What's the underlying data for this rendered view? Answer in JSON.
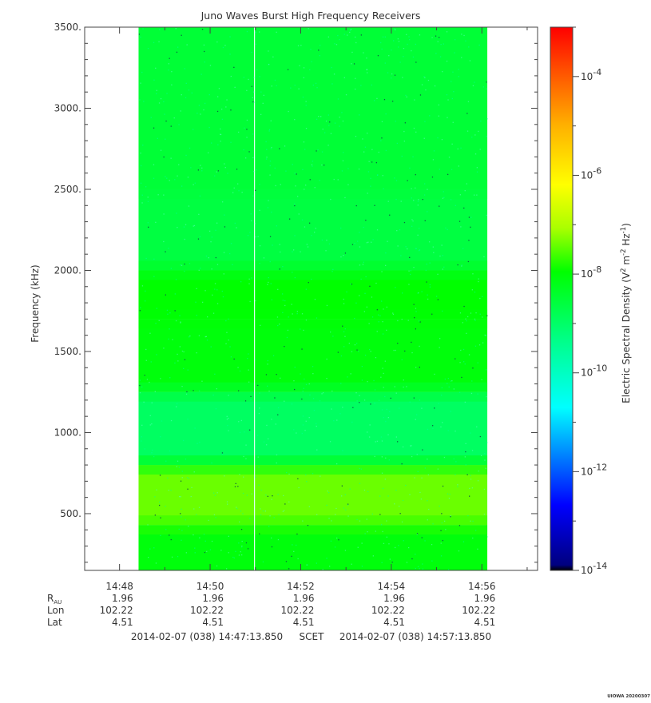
{
  "chart_data": {
    "type": "heatmap",
    "title": "Juno Waves Burst High Frequency Receivers",
    "ylabel": "Frequency (kHz)",
    "y_ticks": [
      "500.",
      "1000.",
      "1500.",
      "2000.",
      "2500.",
      "3000.",
      "3500."
    ],
    "y_tick_values": [
      500,
      1000,
      1500,
      2000,
      2500,
      3000,
      3500
    ],
    "ylim": [
      150,
      3500
    ],
    "x_ticks": [
      "14:48",
      "14:50",
      "14:52",
      "14:54",
      "14:56"
    ],
    "x_tick_minutes": [
      48,
      50,
      52,
      54,
      56
    ],
    "xlim_minutes": [
      47.23,
      57.23
    ],
    "data_extent_minutes": [
      48.42,
      56.12
    ],
    "gap_line_minute": 50.98,
    "colorbar": {
      "label": "Electric Spectral Density (V",
      "label_sup1": "2",
      "label_mid": " m",
      "label_sup2": "-2",
      "label_mid2": " Hz",
      "label_sup3": "-1",
      "label_end": ")",
      "tick_base": "10",
      "tick_exponents": [
        "-4",
        "-6",
        "-8",
        "-10",
        "-12",
        "-14"
      ],
      "tick_values_log": [
        -4,
        -6,
        -8,
        -10,
        -12,
        -14
      ],
      "range_log": [
        -14,
        -3
      ]
    },
    "frequency_bands": [
      {
        "from": 150,
        "to": 430,
        "intensity": 0.54
      },
      {
        "from": 430,
        "to": 800,
        "intensity": 0.6
      },
      {
        "from": 800,
        "to": 1250,
        "intensity": 0.46
      },
      {
        "from": 1250,
        "to": 1700,
        "intensity": 0.54
      },
      {
        "from": 1700,
        "to": 2000,
        "intensity": 0.55
      },
      {
        "from": 2000,
        "to": 2500,
        "intensity": 0.49
      },
      {
        "from": 2500,
        "to": 3500,
        "intensity": 0.5
      }
    ],
    "ephemeris": {
      "rows": [
        {
          "label": "R",
          "label_sub": "AU",
          "values": [
            "1.96",
            "1.96",
            "1.96",
            "1.96",
            "1.96"
          ]
        },
        {
          "label": "Lon",
          "values": [
            "102.22",
            "102.22",
            "102.22",
            "102.22",
            "102.22"
          ]
        },
        {
          "label": "Lat",
          "values": [
            "4.51",
            "4.51",
            "4.51",
            "4.51",
            "4.51"
          ]
        }
      ]
    },
    "time_range": {
      "start": "2014-02-07 (038) 14:47:13.850",
      "mid": "SCET",
      "end": "2014-02-07 (038) 14:57:13.850"
    },
    "footer": "UIOWA 20200307"
  }
}
